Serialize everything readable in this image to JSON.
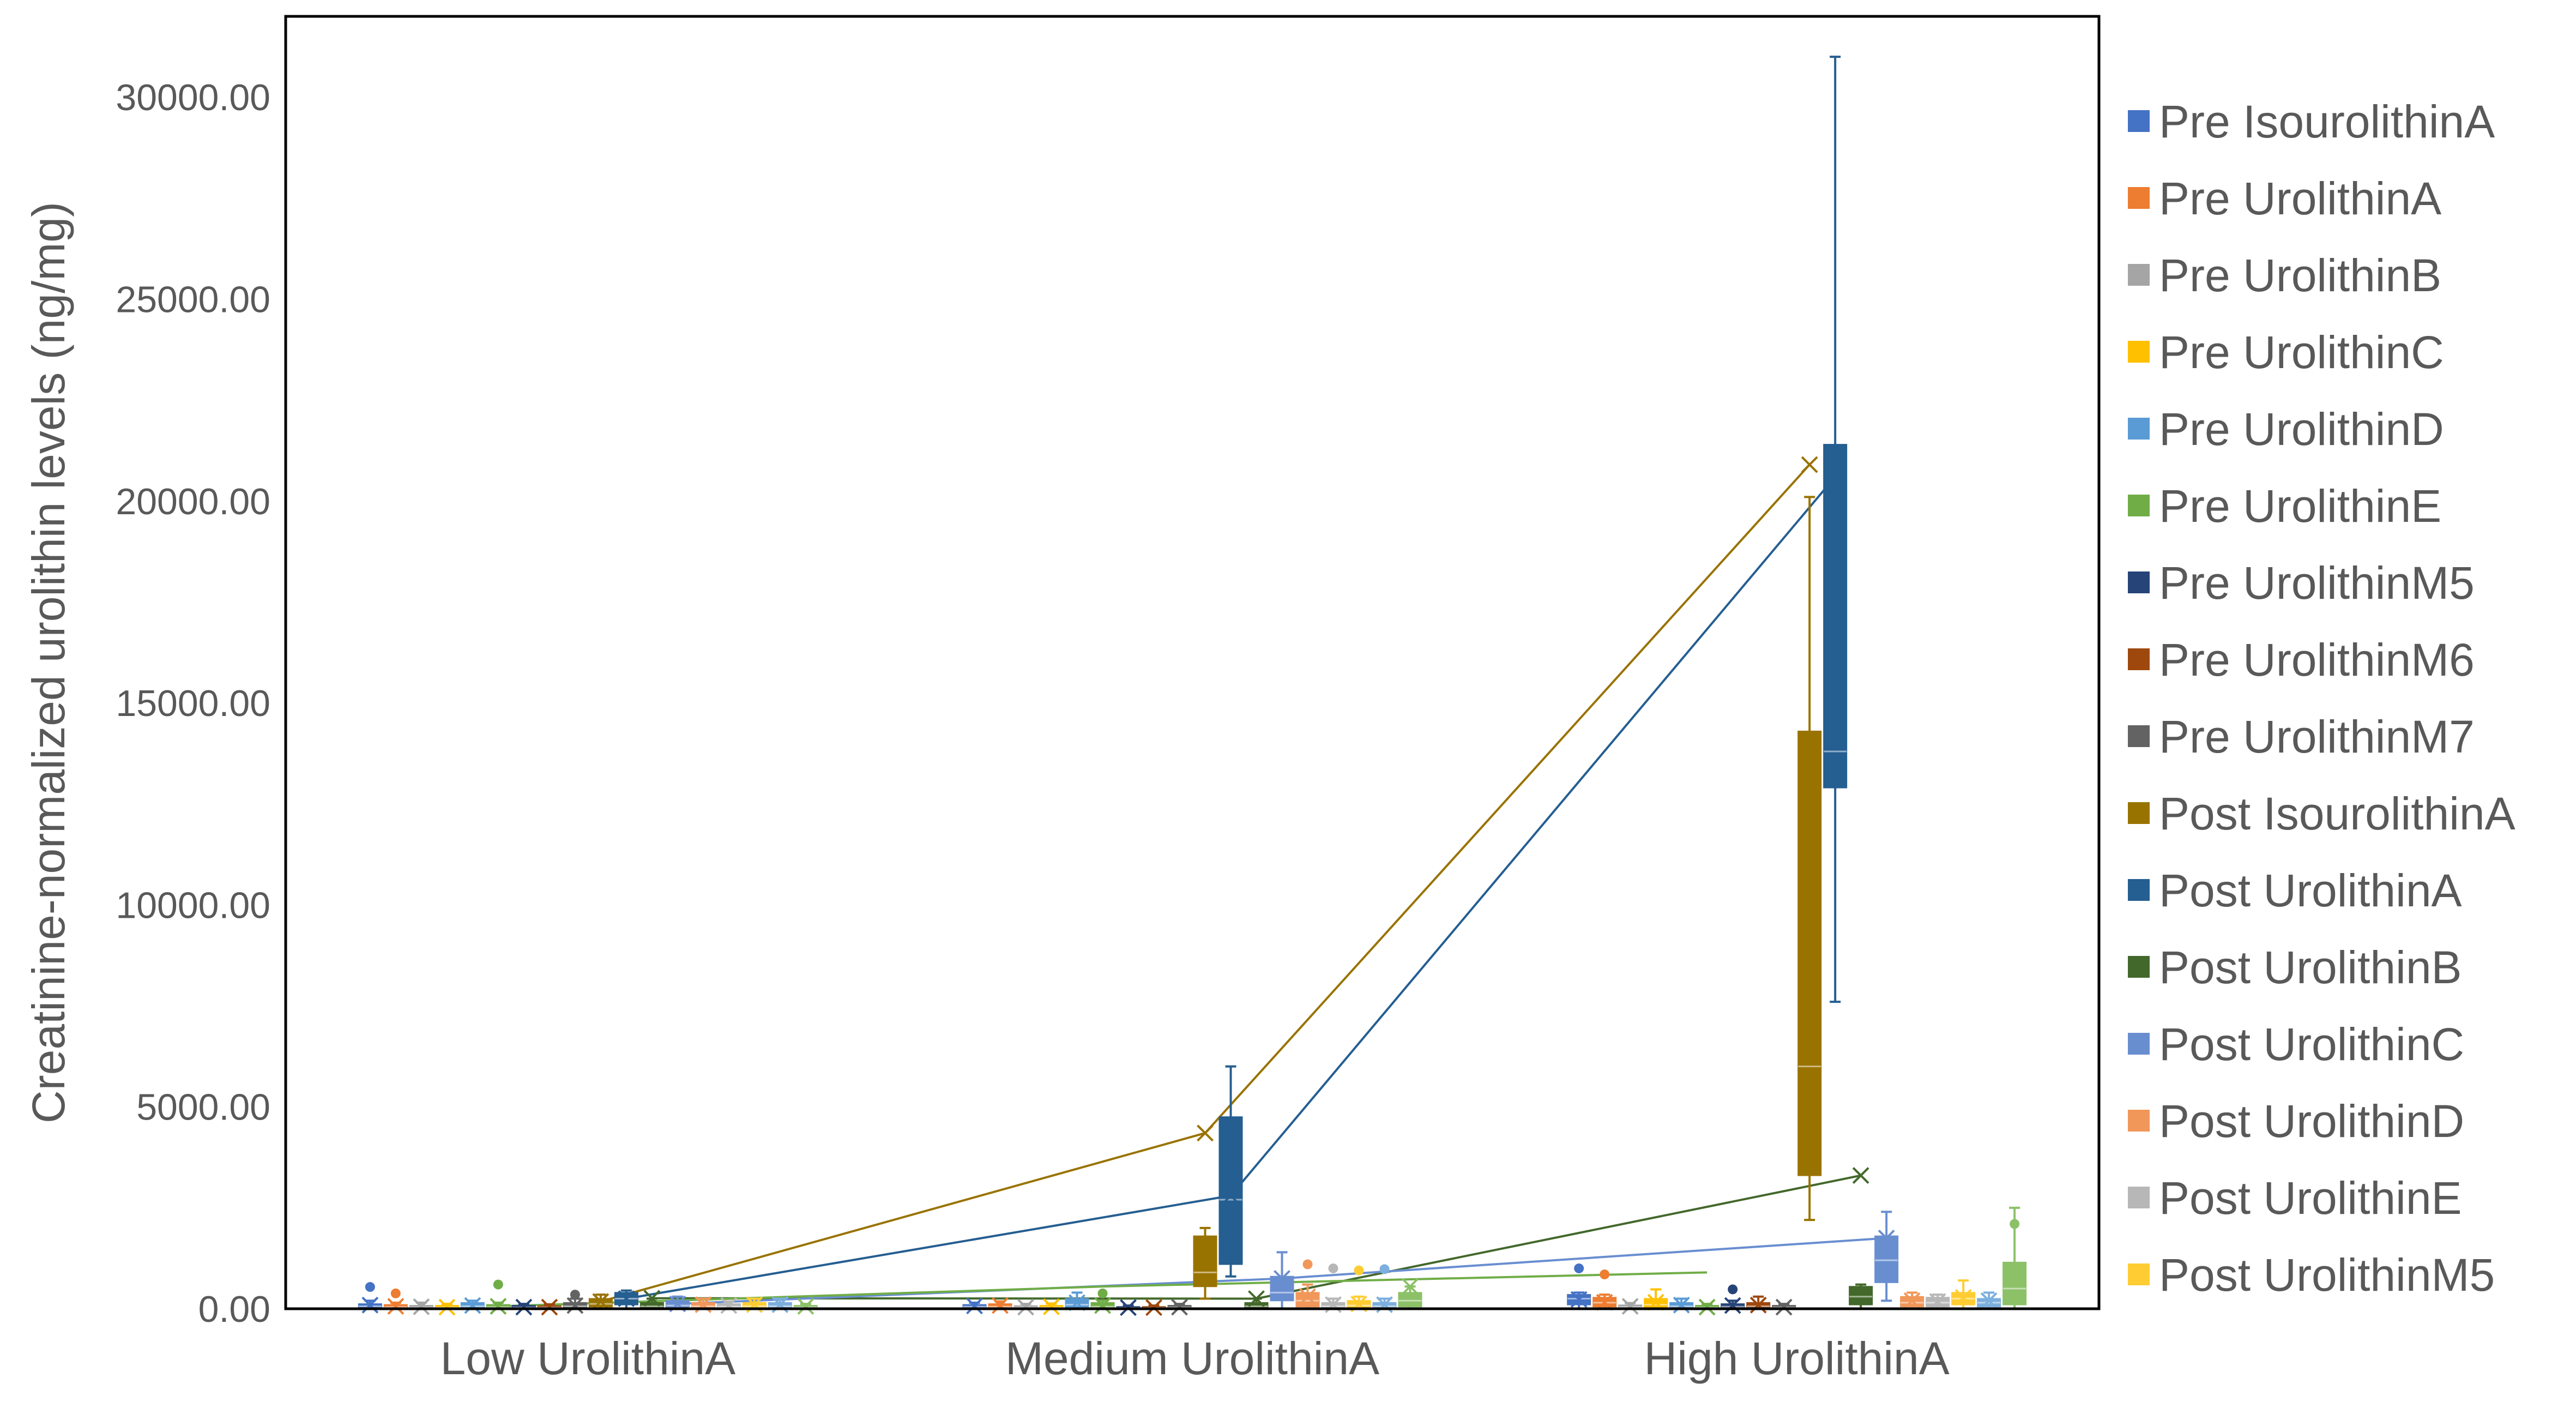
{
  "chart_data": {
    "type": "box",
    "title": "",
    "xlabel": "",
    "ylabel": "Creatinine-normalized urolithin levels (ng/mg)",
    "ylim": [
      0,
      32000
    ],
    "y_ticks": [
      "0.00",
      "5000.00",
      "10000.00",
      "15000.00",
      "20000.00",
      "25000.00",
      "30000.00"
    ],
    "y_tick_values": [
      0,
      5000,
      10000,
      15000,
      20000,
      25000,
      30000
    ],
    "categories": [
      "Low UrolithinA",
      "Medium UrolithinA",
      "High UrolithinA"
    ],
    "legend_position": "right",
    "grid": false,
    "series": [
      {
        "name": "Pre IsourolithinA",
        "color": "#4472C4",
        "boxes": [
          {
            "q1": 20,
            "median": 60,
            "q3": 120,
            "min": 0,
            "max": 200,
            "mean": 90,
            "outliers": [
              540
            ]
          },
          {
            "q1": 20,
            "median": 50,
            "q3": 100,
            "min": 0,
            "max": 150,
            "mean": 70,
            "outliers": []
          },
          {
            "q1": 100,
            "median": 250,
            "q3": 350,
            "min": 0,
            "max": 400,
            "mean": 230,
            "outliers": [
              1000
            ]
          }
        ]
      },
      {
        "name": "Pre UrolithinA",
        "color": "#ED7D31",
        "boxes": [
          {
            "q1": 10,
            "median": 40,
            "q3": 100,
            "min": 0,
            "max": 150,
            "mean": 60,
            "outliers": [
              380
            ]
          },
          {
            "q1": 20,
            "median": 50,
            "q3": 120,
            "min": 0,
            "max": 180,
            "mean": 80,
            "outliers": []
          },
          {
            "q1": 50,
            "median": 150,
            "q3": 280,
            "min": 0,
            "max": 350,
            "mean": 160,
            "outliers": [
              850
            ]
          }
        ]
      },
      {
        "name": "Pre UrolithinB",
        "color": "#A5A5A5",
        "boxes": [
          {
            "q1": 10,
            "median": 30,
            "q3": 80,
            "min": 0,
            "max": 150,
            "mean": 50,
            "outliers": []
          },
          {
            "q1": 10,
            "median": 30,
            "q3": 70,
            "min": 0,
            "max": 120,
            "mean": 40,
            "outliers": []
          },
          {
            "q1": 10,
            "median": 40,
            "q3": 90,
            "min": 0,
            "max": 140,
            "mean": 60,
            "outliers": []
          }
        ]
      },
      {
        "name": "Pre UrolithinC",
        "color": "#FFC000",
        "boxes": [
          {
            "q1": 10,
            "median": 30,
            "q3": 80,
            "min": 0,
            "max": 120,
            "mean": 40,
            "outliers": []
          },
          {
            "q1": 10,
            "median": 30,
            "q3": 80,
            "min": 0,
            "max": 130,
            "mean": 50,
            "outliers": []
          },
          {
            "q1": 30,
            "median": 100,
            "q3": 250,
            "min": 0,
            "max": 480,
            "mean": 160,
            "outliers": []
          }
        ]
      },
      {
        "name": "Pre UrolithinD",
        "color": "#5B9BD5",
        "boxes": [
          {
            "q1": 20,
            "median": 60,
            "q3": 150,
            "min": 0,
            "max": 200,
            "mean": 80,
            "outliers": []
          },
          {
            "q1": 30,
            "median": 100,
            "q3": 250,
            "min": 0,
            "max": 400,
            "mean": 150,
            "outliers": []
          },
          {
            "q1": 20,
            "median": 60,
            "q3": 150,
            "min": 0,
            "max": 250,
            "mean": 90,
            "outliers": []
          }
        ]
      },
      {
        "name": "Pre UrolithinE",
        "color": "#70AD47",
        "boxes": [
          {
            "q1": 10,
            "median": 40,
            "q3": 100,
            "min": 0,
            "max": 150,
            "mean": 60,
            "outliers": [
              600
            ]
          },
          {
            "q1": 20,
            "median": 50,
            "q3": 150,
            "min": 0,
            "max": 200,
            "mean": 80,
            "outliers": [
              380
            ]
          },
          {
            "q1": 10,
            "median": 30,
            "q3": 80,
            "min": 0,
            "max": 120,
            "mean": 40,
            "outliers": []
          }
        ]
      },
      {
        "name": "Pre UrolithinM5",
        "color": "#264478",
        "boxes": [
          {
            "q1": 10,
            "median": 30,
            "q3": 80,
            "min": 0,
            "max": 120,
            "mean": 40,
            "outliers": []
          },
          {
            "q1": 10,
            "median": 20,
            "q3": 50,
            "min": 0,
            "max": 80,
            "mean": 30,
            "outliers": []
          },
          {
            "q1": 20,
            "median": 50,
            "q3": 120,
            "min": 0,
            "max": 200,
            "mean": 80,
            "outliers": [
              480
            ]
          }
        ]
      },
      {
        "name": "Pre UrolithinM6",
        "color": "#9E480E",
        "boxes": [
          {
            "q1": 10,
            "median": 30,
            "q3": 70,
            "min": 0,
            "max": 110,
            "mean": 40,
            "outliers": []
          },
          {
            "q1": 10,
            "median": 20,
            "q3": 50,
            "min": 0,
            "max": 80,
            "mean": 30,
            "outliers": []
          },
          {
            "q1": 20,
            "median": 60,
            "q3": 150,
            "min": 0,
            "max": 300,
            "mean": 90,
            "outliers": []
          }
        ]
      },
      {
        "name": "Pre UrolithinM7",
        "color": "#636363",
        "boxes": [
          {
            "q1": 20,
            "median": 60,
            "q3": 150,
            "min": 0,
            "max": 250,
            "mean": 80,
            "outliers": [
              350
            ]
          },
          {
            "q1": 10,
            "median": 30,
            "q3": 80,
            "min": 0,
            "max": 120,
            "mean": 40,
            "outliers": []
          },
          {
            "q1": 10,
            "median": 30,
            "q3": 80,
            "min": 0,
            "max": 120,
            "mean": 40,
            "outliers": []
          }
        ]
      },
      {
        "name": "Post IsourolithinA",
        "color": "#997300",
        "boxes": [
          {
            "q1": 50,
            "median": 120,
            "q3": 250,
            "min": 0,
            "max": 350,
            "mean": 180,
            "outliers": []
          },
          {
            "q1": 550,
            "median": 900,
            "q3": 1800,
            "min": 250,
            "max": 2000,
            "mean": 4350,
            "outliers": []
          },
          {
            "q1": 3300,
            "median": 6000,
            "q3": 14300,
            "min": 2200,
            "max": 20100,
            "mean": 20900,
            "outliers": []
          }
        ]
      },
      {
        "name": "Post UrolithinA",
        "color": "#255E91",
        "boxes": [
          {
            "q1": 100,
            "median": 250,
            "q3": 400,
            "min": 0,
            "max": 450,
            "mean": 250,
            "outliers": []
          },
          {
            "q1": 1100,
            "median": 2700,
            "q3": 4750,
            "min": 800,
            "max": 6000,
            "mean": 2800,
            "outliers": []
          },
          {
            "q1": 12900,
            "median": 13800,
            "q3": 21400,
            "min": 7600,
            "max": 31000,
            "mean": 20600,
            "outliers": []
          }
        ]
      },
      {
        "name": "Post UrolithinB",
        "color": "#43682B",
        "boxes": [
          {
            "q1": 20,
            "median": 60,
            "q3": 150,
            "min": 0,
            "max": 250,
            "mean": 260,
            "outliers": []
          },
          {
            "q1": 20,
            "median": 60,
            "q3": 150,
            "min": 0,
            "max": 250,
            "mean": 250,
            "outliers": []
          },
          {
            "q1": 100,
            "median": 300,
            "q3": 550,
            "min": 0,
            "max": 600,
            "mean": 3300,
            "outliers": []
          }
        ]
      },
      {
        "name": "Post UrolithinC",
        "color": "#698ED0",
        "boxes": [
          {
            "q1": 20,
            "median": 80,
            "q3": 200,
            "min": 0,
            "max": 300,
            "mean": 120,
            "outliers": []
          },
          {
            "q1": 200,
            "median": 400,
            "q3": 800,
            "min": 0,
            "max": 1400,
            "mean": 750,
            "outliers": []
          },
          {
            "q1": 650,
            "median": 1200,
            "q3": 1800,
            "min": 200,
            "max": 2400,
            "mean": 1750,
            "outliers": []
          }
        ]
      },
      {
        "name": "Post UrolithinD",
        "color": "#F1975A",
        "boxes": [
          {
            "q1": 20,
            "median": 60,
            "q3": 150,
            "min": 0,
            "max": 250,
            "mean": 100,
            "outliers": []
          },
          {
            "q1": 50,
            "median": 200,
            "q3": 400,
            "min": 0,
            "max": 600,
            "mean": 300,
            "outliers": [
              1100
            ]
          },
          {
            "q1": 50,
            "median": 150,
            "q3": 300,
            "min": 0,
            "max": 400,
            "mean": 200,
            "outliers": []
          }
        ]
      },
      {
        "name": "Post UrolithinE",
        "color": "#B7B7B7",
        "boxes": [
          {
            "q1": 20,
            "median": 50,
            "q3": 120,
            "min": 0,
            "max": 180,
            "mean": 80,
            "outliers": []
          },
          {
            "q1": 20,
            "median": 60,
            "q3": 150,
            "min": 0,
            "max": 250,
            "mean": 100,
            "outliers": [
              1000
            ]
          },
          {
            "q1": 50,
            "median": 150,
            "q3": 280,
            "min": 0,
            "max": 350,
            "mean": 180,
            "outliers": []
          }
        ]
      },
      {
        "name": "Post UrolithinM5",
        "color": "#FFCD33",
        "boxes": [
          {
            "q1": 20,
            "median": 60,
            "q3": 150,
            "min": 0,
            "max": 250,
            "mean": 100,
            "outliers": []
          },
          {
            "q1": 20,
            "median": 80,
            "q3": 200,
            "min": 0,
            "max": 300,
            "mean": 120,
            "outliers": [
              950
            ]
          },
          {
            "q1": 100,
            "median": 250,
            "q3": 400,
            "min": 0,
            "max": 700,
            "mean": 280,
            "outliers": []
          }
        ]
      },
      {
        "name": "",
        "color": "#7CAFDD",
        "in_legend": false,
        "boxes": [
          {
            "q1": 20,
            "median": 60,
            "q3": 150,
            "min": 0,
            "max": 250,
            "mean": 100,
            "outliers": []
          },
          {
            "q1": 20,
            "median": 60,
            "q3": 150,
            "min": 0,
            "max": 250,
            "mean": 100,
            "outliers": [
              980
            ]
          },
          {
            "q1": 50,
            "median": 150,
            "q3": 250,
            "min": 0,
            "max": 400,
            "mean": 200,
            "outliers": []
          }
        ]
      },
      {
        "name": "",
        "color": "#8CC168",
        "in_legend": false,
        "boxes": [
          {
            "q1": 10,
            "median": 30,
            "q3": 80,
            "min": 0,
            "max": 120,
            "mean": 60,
            "outliers": []
          },
          {
            "q1": 50,
            "median": 200,
            "q3": 400,
            "min": 0,
            "max": 550,
            "mean": 550,
            "outliers": []
          },
          {
            "q1": 100,
            "median": 500,
            "q3": 1150,
            "min": 0,
            "max": 2500,
            "mean": 900,
            "outliers": [
              2100
            ]
          }
        ]
      }
    ],
    "mean_trend_lines": [
      {
        "series": "Post IsourolithinA",
        "color": "#997300",
        "values": [
          180,
          4350,
          20900
        ]
      },
      {
        "series": "Post UrolithinA",
        "color": "#255E91",
        "values": [
          250,
          2800,
          20600
        ]
      },
      {
        "series": "Post UrolithinB",
        "color": "#43682B",
        "values": [
          260,
          250,
          3300
        ]
      },
      {
        "series": "Post UrolithinC",
        "color": "#698ED0",
        "values": [
          120,
          750,
          1750
        ]
      },
      {
        "series": "",
        "color": "#70AD47",
        "values": [
          60,
          550,
          900
        ]
      }
    ]
  }
}
